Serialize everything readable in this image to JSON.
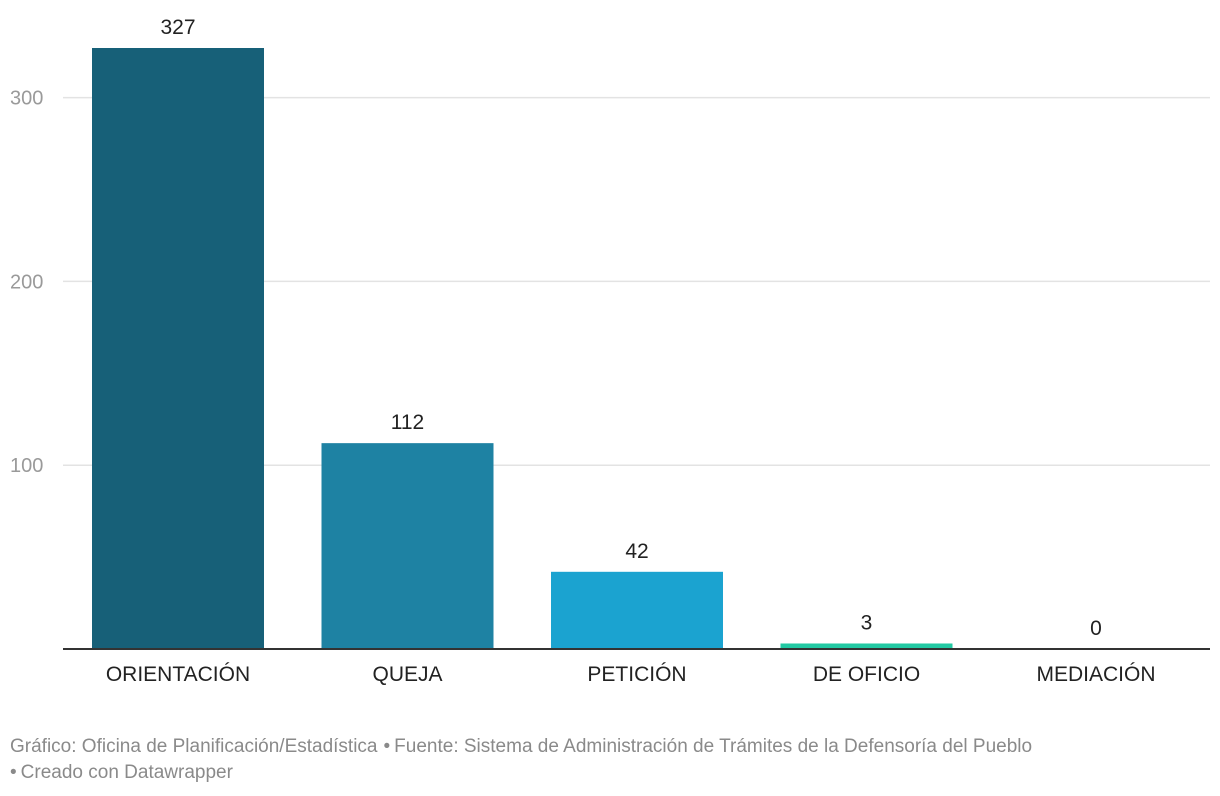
{
  "chart_data": {
    "type": "bar",
    "categories": [
      "ORIENTACIÓN",
      "QUEJA",
      "PETICIÓN",
      "DE OFICIO",
      "MEDIACIÓN"
    ],
    "values": [
      327,
      112,
      42,
      3,
      0
    ],
    "colors": [
      "#176078",
      "#1e82a3",
      "#1ba3d0",
      "#22c9a3",
      "#22c9a3"
    ],
    "ylim": [
      0,
      327
    ],
    "yticks": [
      100,
      200,
      300
    ],
    "grid": true,
    "legend": "none",
    "title": "",
    "xlabel": "",
    "ylabel": ""
  },
  "footer": {
    "grafico": "Gráfico: Oficina de Planificación/Estadística",
    "fuente": "Fuente: Sistema de Administración de Trámites de la Defensoría del Pueblo",
    "creado": "Creado con Datawrapper"
  }
}
